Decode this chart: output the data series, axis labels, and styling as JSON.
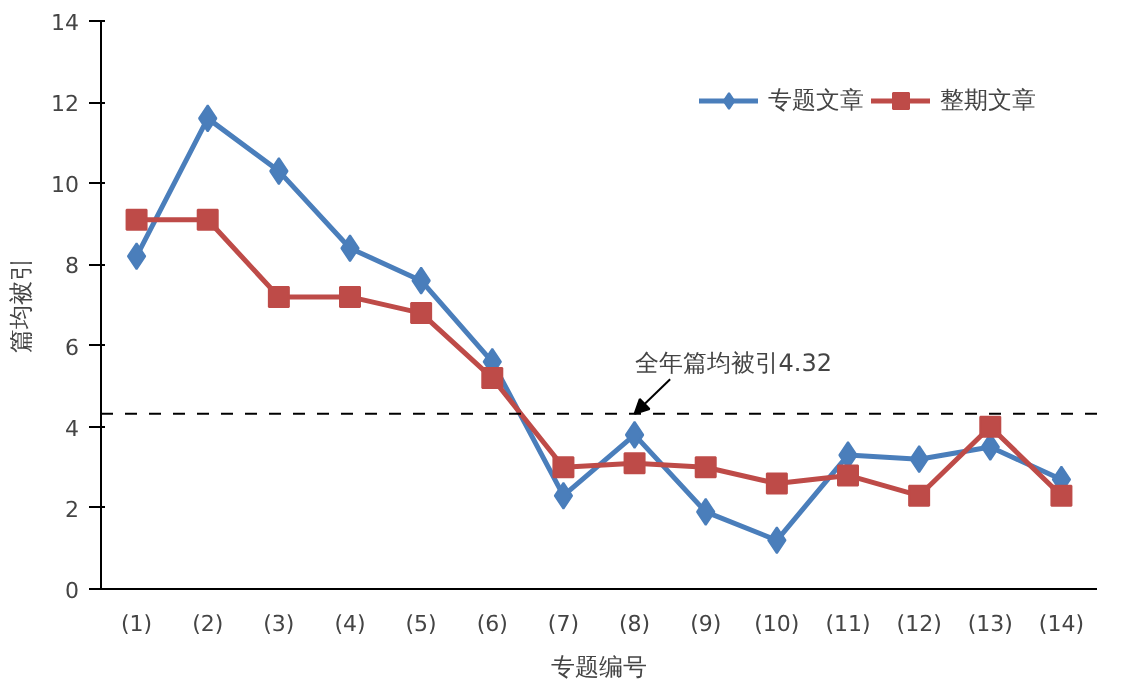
{
  "chart_data": {
    "type": "line",
    "xlabel": "专题编号",
    "ylabel": "篇均被引",
    "categories": [
      "(1)",
      "(2)",
      "(3)",
      "(4)",
      "(5)",
      "(6)",
      "(7)",
      "(8)",
      "(9)",
      "(10)",
      "(11)",
      "(12)",
      "(13)",
      "(14)"
    ],
    "series": [
      {
        "name": "专题文章",
        "color": "#4a7ebb",
        "marker": "diamond",
        "values": [
          8.2,
          11.6,
          10.3,
          8.4,
          7.6,
          5.6,
          2.3,
          3.8,
          1.9,
          1.2,
          3.3,
          3.2,
          3.5,
          2.7
        ]
      },
      {
        "name": "整期文章",
        "color": "#be4b48",
        "marker": "square",
        "values": [
          9.1,
          9.1,
          7.2,
          7.2,
          6.8,
          5.2,
          3.0,
          3.1,
          3.0,
          2.6,
          2.8,
          2.3,
          4.0,
          2.3
        ]
      }
    ],
    "ylim": [
      0,
      14
    ],
    "yticks": [
      0,
      2,
      4,
      6,
      8,
      10,
      12,
      14
    ],
    "ref_lines": [
      {
        "axis": "y",
        "value": 4.32,
        "color": "#000000",
        "line_style": "dashed"
      }
    ],
    "annotations": [
      {
        "text": "全年篇均被引4.32",
        "y": 4.32
      }
    ],
    "grid": false,
    "legend": "top right",
    "line_style": "solid"
  }
}
